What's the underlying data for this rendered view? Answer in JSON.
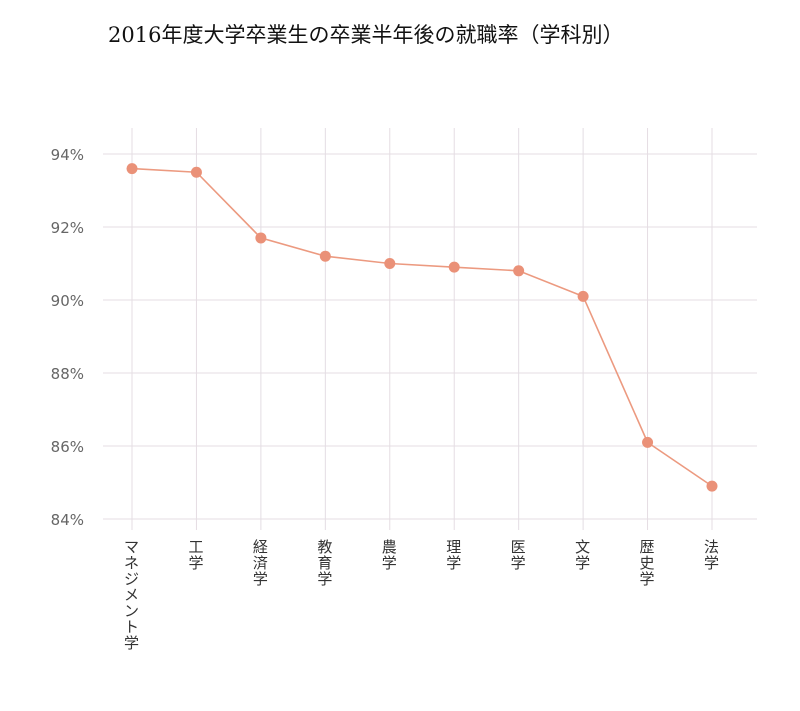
{
  "chart_data": {
    "type": "line",
    "title": "2016年度大学卒業生の卒業半年後の就職率（学科別）",
    "xlabel": "",
    "ylabel": "",
    "categories": [
      "マネジメント学",
      "工学",
      "経済学",
      "教育学",
      "農学",
      "理学",
      "医学",
      "文学",
      "歴史学",
      "法学"
    ],
    "values": [
      93.6,
      93.5,
      91.7,
      91.2,
      91.0,
      90.9,
      90.8,
      90.1,
      86.1,
      84.9
    ],
    "ylim": [
      84,
      94.7
    ],
    "yticks": [
      84,
      86,
      88,
      90,
      92,
      94
    ],
    "ytick_labels": [
      "84%",
      "86%",
      "88%",
      "90%",
      "92%",
      "94%"
    ],
    "grid": true,
    "legend": "none",
    "colors": {
      "line": "#ec9a80",
      "marker": "#ea9178",
      "grid": "#e4dde3"
    }
  }
}
